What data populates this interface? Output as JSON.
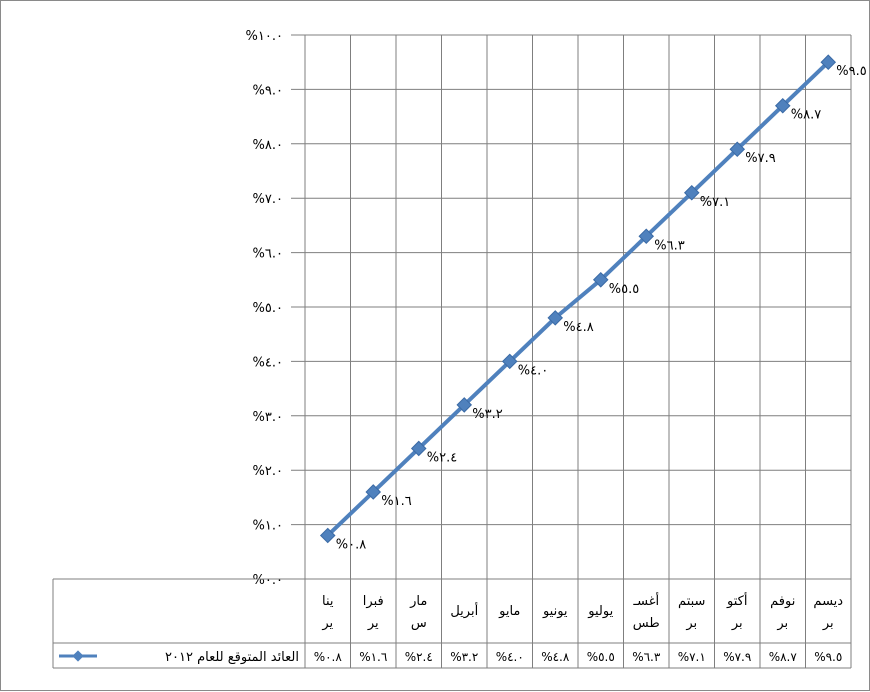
{
  "chart_data": {
    "type": "line",
    "title": "",
    "xlabel": "",
    "ylabel": "",
    "categories": [
      [
        "ينا",
        "ير"
      ],
      [
        "فبرا",
        "ير"
      ],
      [
        "مار",
        "س"
      ],
      [
        "أبريل"
      ],
      [
        "مايو"
      ],
      [
        "يونيو"
      ],
      [
        "يوليو"
      ],
      [
        "أغسـ",
        "طس"
      ],
      [
        "سبتم",
        "بر"
      ],
      [
        "أكتو",
        "بر"
      ],
      [
        "نوفم",
        "بر"
      ],
      [
        "ديسم",
        "بر"
      ]
    ],
    "series": [
      {
        "name": "العائد المتوقع للعام ٢٠١٢",
        "values": [
          0.8,
          1.6,
          2.4,
          3.2,
          4.0,
          4.8,
          5.5,
          6.3,
          7.1,
          7.9,
          8.7,
          9.5
        ],
        "labels": [
          "%٠.٨",
          "%١.٦",
          "%٢.٤",
          "%٣.٢",
          "%٤.٠",
          "%٤.٨",
          "%٥.٥",
          "%٦.٣",
          "%٧.١",
          "%٧.٩",
          "%٨.٧",
          "%٩.٥"
        ],
        "color": "#4f81bd"
      }
    ],
    "ylim": [
      0,
      10
    ],
    "y_ticks": [
      0,
      1,
      2,
      3,
      4,
      5,
      6,
      7,
      8,
      9,
      10
    ],
    "y_tick_labels": [
      "%٠.٠",
      "%١.٠",
      "%٢.٠",
      "%٣.٠",
      "%٤.٠",
      "%٥.٠",
      "%٦.٠",
      "%٧.٠",
      "%٨.٠",
      "%٩.٠",
      "%١٠.٠"
    ],
    "grid": true,
    "legend": "data-table-left",
    "data_table": true,
    "data_table_values": [
      "%٠.٨",
      "%١.٦",
      "%٢.٤",
      "%٣.٢",
      "%٤.٠",
      "%٤.٨",
      "%٥.٥",
      "%٦.٣",
      "%٧.١",
      "%٧.٩",
      "%٨.٧",
      "%٩.٥"
    ],
    "gridline_color": "#7f7f7f",
    "marker": "diamond"
  }
}
